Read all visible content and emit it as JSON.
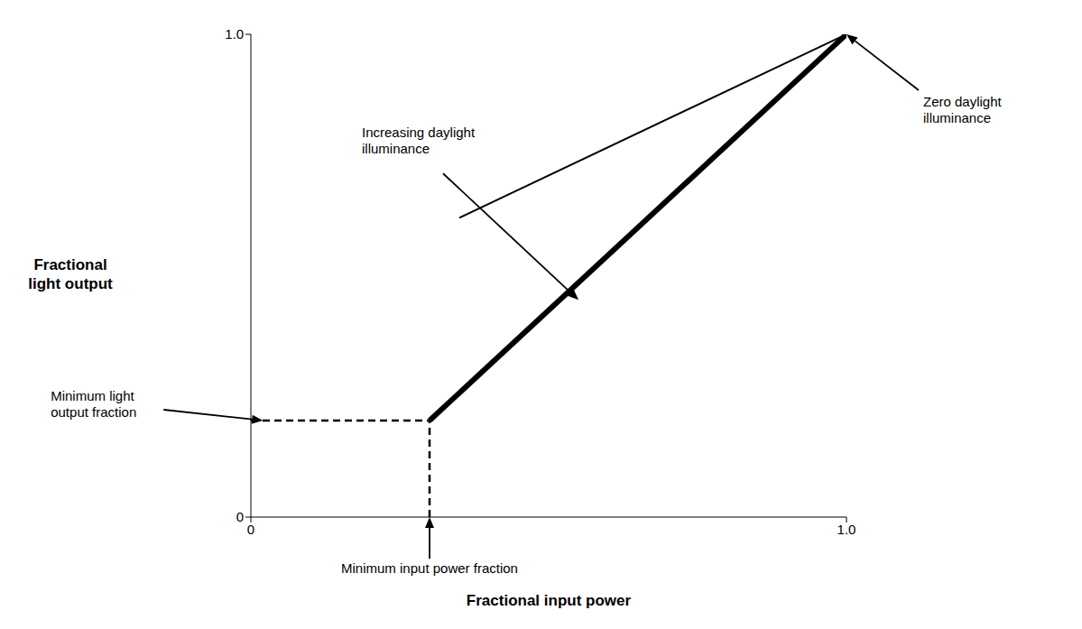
{
  "chart_data": {
    "type": "line",
    "xlabel": "Fractional input power",
    "ylabel": "Fractional\nlight output",
    "xlim": [
      0,
      1.0
    ],
    "ylim": [
      0,
      1.0
    ],
    "xticks": [
      0,
      {
        "value": 1.0,
        "label": "1.0"
      }
    ],
    "yticks": [
      0,
      {
        "value": 1.0,
        "label": "1.0"
      }
    ],
    "grid": false,
    "series": [
      {
        "x": [
          0.3,
          1.0
        ],
        "values": [
          0.2,
          1.0
        ],
        "color": "#000000",
        "line_style": "solid"
      },
      {
        "x": [
          0.35,
          1.0
        ],
        "values": [
          0.62,
          1.0
        ],
        "color": "#000000",
        "line_style": "solid"
      },
      {
        "x": [
          0,
          0.3
        ],
        "values": [
          0.2,
          0.2
        ],
        "color": "#000000",
        "line_style": "dashed"
      },
      {
        "x": [
          0.3,
          0.3
        ],
        "values": [
          0,
          0.2
        ],
        "color": "#000000",
        "line_style": "dashed"
      }
    ],
    "annotations": [
      {
        "text": "Increasing daylight\nilluminance",
        "x": 0.55,
        "y": 0.45
      },
      {
        "text": "Zero daylight\nilluminance",
        "x": 1.0,
        "y": 1.0
      },
      {
        "text": "Minimum light\noutput fraction",
        "x": 0.02,
        "y": 0.2
      },
      {
        "text": "Minimum input power fraction",
        "x": 0.3,
        "y": 0.0
      }
    ]
  }
}
